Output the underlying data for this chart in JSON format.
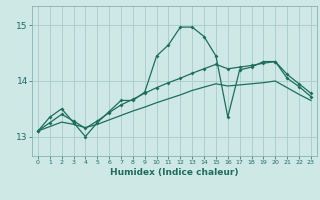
{
  "xlabel": "Humidex (Indice chaleur)",
  "bg_color": "#cde8e5",
  "line_color": "#1e6e5e",
  "grid_color": "#a8ccc8",
  "spine_color": "#7aaaa4",
  "x_ticks": [
    0,
    1,
    2,
    3,
    4,
    5,
    6,
    7,
    8,
    9,
    10,
    11,
    12,
    13,
    14,
    15,
    16,
    17,
    18,
    19,
    20,
    21,
    22,
    23
  ],
  "y_ticks": [
    13,
    14,
    15
  ],
  "xlim": [
    -0.5,
    23.5
  ],
  "ylim": [
    12.65,
    15.35
  ],
  "series1_x": [
    0,
    1,
    2,
    3,
    4,
    5,
    6,
    7,
    8,
    9,
    10,
    11,
    12,
    13,
    14,
    15,
    16,
    17,
    18,
    19,
    20,
    21,
    22,
    23
  ],
  "series1_y": [
    13.1,
    13.35,
    13.5,
    13.25,
    13.0,
    13.25,
    13.45,
    13.65,
    13.65,
    13.8,
    14.45,
    14.65,
    14.97,
    14.97,
    14.8,
    14.45,
    13.35,
    14.2,
    14.25,
    14.35,
    14.35,
    14.05,
    13.9,
    13.72
  ],
  "series2_x": [
    0,
    1,
    2,
    3,
    4,
    5,
    6,
    7,
    8,
    9,
    10,
    11,
    12,
    13,
    14,
    15,
    16,
    17,
    18,
    19,
    20,
    21,
    22,
    23
  ],
  "series2_y": [
    13.1,
    13.25,
    13.4,
    13.28,
    13.15,
    13.28,
    13.43,
    13.57,
    13.67,
    13.78,
    13.88,
    13.97,
    14.05,
    14.14,
    14.22,
    14.3,
    14.22,
    14.25,
    14.28,
    14.32,
    14.35,
    14.12,
    13.95,
    13.78
  ],
  "series3_x": [
    0,
    1,
    2,
    3,
    4,
    5,
    6,
    7,
    8,
    9,
    10,
    11,
    12,
    13,
    14,
    15,
    16,
    17,
    18,
    19,
    20,
    21,
    22,
    23
  ],
  "series3_y": [
    13.1,
    13.18,
    13.26,
    13.22,
    13.16,
    13.22,
    13.3,
    13.38,
    13.46,
    13.53,
    13.61,
    13.68,
    13.75,
    13.83,
    13.89,
    13.95,
    13.91,
    13.93,
    13.95,
    13.97,
    14.0,
    13.88,
    13.76,
    13.65
  ]
}
